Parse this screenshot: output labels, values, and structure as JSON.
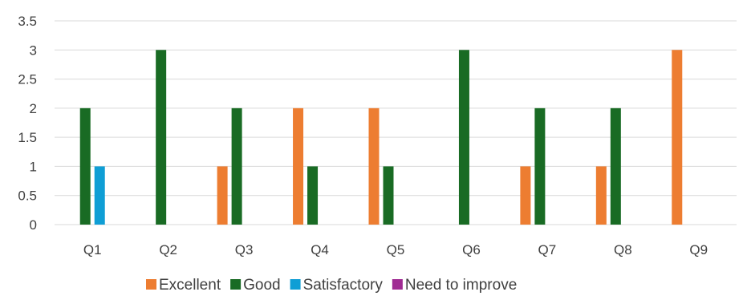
{
  "chart_data": {
    "type": "bar",
    "categories": [
      "Q1",
      "Q2",
      "Q3",
      "Q4",
      "Q5",
      "Q6",
      "Q7",
      "Q8",
      "Q9"
    ],
    "series": [
      {
        "name": "Excellent",
        "color": "#ED7D31",
        "values": [
          0,
          0,
          1,
          2,
          2,
          0,
          1,
          1,
          3
        ]
      },
      {
        "name": "Good",
        "color": "#196B24",
        "values": [
          2,
          3,
          2,
          1,
          1,
          3,
          2,
          2,
          0
        ]
      },
      {
        "name": "Satisfactory",
        "color": "#0F9ED5",
        "values": [
          1,
          0,
          0,
          0,
          0,
          0,
          0,
          0,
          0
        ]
      },
      {
        "name": "Need to improve",
        "color": "#A02B93",
        "values": [
          0,
          0,
          0,
          0,
          0,
          0,
          0,
          0,
          0
        ]
      }
    ],
    "ylim": [
      0,
      3.5
    ],
    "yticks": [
      "0",
      "0.5",
      "1",
      "1.5",
      "2",
      "2.5",
      "3",
      "3.5"
    ],
    "grid": true,
    "legend_position": "bottom"
  }
}
